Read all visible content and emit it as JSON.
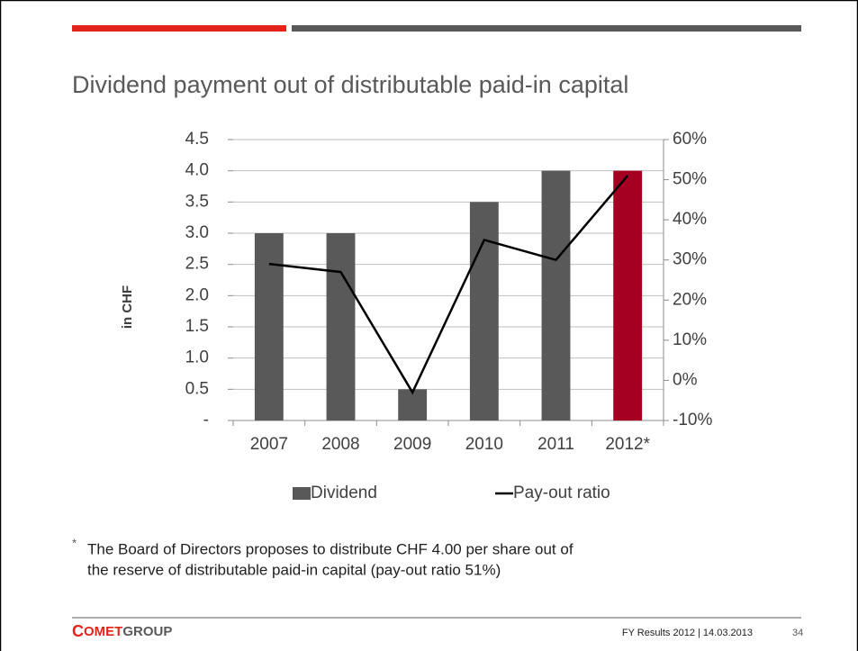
{
  "chart_data": {
    "type": "combo",
    "title": "Dividend payment out of distributable paid-in capital",
    "y_label": "in CHF",
    "categories": [
      "2007",
      "2008",
      "2009",
      "2010",
      "2011",
      "2012*"
    ],
    "series": [
      {
        "name": "Dividend",
        "type": "bar",
        "color": "#595959",
        "colors": [
          "#595959",
          "#595959",
          "#595959",
          "#595959",
          "#595959",
          "#a50021"
        ],
        "values": [
          3,
          3,
          0.5,
          3.5,
          4,
          4
        ]
      },
      {
        "name": "Pay-out ratio",
        "type": "line",
        "axis": "y2",
        "color": "#000000",
        "values": [
          29,
          27,
          -3,
          35,
          30,
          51
        ]
      }
    ],
    "ylim": [
      0,
      4.5
    ],
    "yticks": [
      {
        "value": 0,
        "label": "-"
      },
      0.5,
      {
        "value": 1,
        "label": "1.0"
      },
      1.5,
      {
        "value": 2,
        "label": "2.0"
      },
      2.5,
      {
        "value": 3,
        "label": "3.0"
      },
      3.5,
      {
        "value": 4,
        "label": "4.0"
      },
      4.5
    ],
    "y2lim": [
      -10,
      60
    ],
    "y2ticks": [
      {
        "value": -10,
        "label": "-10%"
      },
      {
        "value": 0,
        "label": "0%"
      },
      {
        "value": 10,
        "label": "10%"
      },
      {
        "value": 20,
        "label": "20%"
      },
      {
        "value": 30,
        "label": "30%"
      },
      {
        "value": 40,
        "label": "40%"
      },
      {
        "value": 50,
        "label": "50%"
      },
      {
        "value": 60,
        "label": "60%"
      }
    ],
    "grid": true,
    "legend": "bottom"
  },
  "footnote": {
    "marker": "*",
    "lines": [
      "The Board of Directors proposes to distribute CHF 4.00 per share out of",
      "the reserve of distributable paid-in capital (pay-out ratio 51%)"
    ]
  },
  "footer": {
    "logo": [
      "C",
      "OMET",
      "GROUP"
    ],
    "text": "FY Results 2012 | 14.03.2013",
    "page": "34"
  }
}
